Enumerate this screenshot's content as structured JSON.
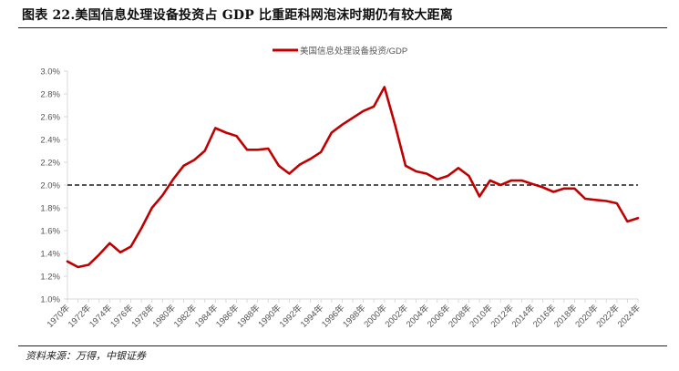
{
  "title": "图表 22.美国信息处理设备投资占 GDP 比重距科网泡沫时期仍有较大距离",
  "source": "资料来源：万得，中银证券",
  "colors": {
    "series": "#c00000",
    "reference": "#1a1a1a",
    "axis": "#d9d9d9",
    "text": "#555555"
  },
  "chart_data": {
    "type": "line",
    "title": "图表 22.美国信息处理设备投资占 GDP 比重距科网泡沫时期仍有较大距离",
    "xlabel": "",
    "ylabel": "",
    "ylim": [
      1.0,
      3.0
    ],
    "yticks": [
      "1.0%",
      "1.2%",
      "1.4%",
      "1.6%",
      "1.8%",
      "2.0%",
      "2.2%",
      "2.4%",
      "2.6%",
      "2.8%",
      "3.0%"
    ],
    "xticks": [
      "1970年",
      "1972年",
      "1974年",
      "1976年",
      "1978年",
      "1980年",
      "1982年",
      "1984年",
      "1986年",
      "1988年",
      "1990年",
      "1992年",
      "1994年",
      "1996年",
      "1998年",
      "2000年",
      "2002年",
      "2004年",
      "2006年",
      "2008年",
      "2010年",
      "2012年",
      "2014年",
      "2016年",
      "2018年",
      "2020年",
      "2022年",
      "2024年"
    ],
    "legend_position": "top-center",
    "grid": false,
    "x": [
      1970,
      1971,
      1972,
      1973,
      1974,
      1975,
      1976,
      1977,
      1978,
      1979,
      1980,
      1981,
      1982,
      1983,
      1984,
      1985,
      1986,
      1987,
      1988,
      1989,
      1990,
      1991,
      1992,
      1993,
      1994,
      1995,
      1996,
      1997,
      1998,
      1999,
      2000,
      2001,
      2002,
      2003,
      2004,
      2005,
      2006,
      2007,
      2008,
      2009,
      2010,
      2011,
      2012,
      2013,
      2014,
      2015,
      2016,
      2017,
      2018,
      2019,
      2020,
      2021,
      2022,
      2023,
      2024
    ],
    "series": [
      {
        "name": "美国信息处理设备投资/GDP",
        "values": [
          1.33,
          1.28,
          1.3,
          1.39,
          1.49,
          1.41,
          1.46,
          1.62,
          1.8,
          1.91,
          2.05,
          2.17,
          2.22,
          2.3,
          2.5,
          2.46,
          2.43,
          2.31,
          2.31,
          2.32,
          2.17,
          2.1,
          2.18,
          2.23,
          2.29,
          2.46,
          2.53,
          2.59,
          2.65,
          2.69,
          2.86,
          2.53,
          2.17,
          2.12,
          2.1,
          2.05,
          2.08,
          2.15,
          2.08,
          1.9,
          2.04,
          2.0,
          2.04,
          2.04,
          2.01,
          1.98,
          1.94,
          1.97,
          1.97,
          1.88,
          1.87,
          1.86,
          1.84,
          1.68,
          1.71
        ]
      }
    ],
    "reference_line": {
      "value": 2.0,
      "style": "dashed"
    }
  }
}
